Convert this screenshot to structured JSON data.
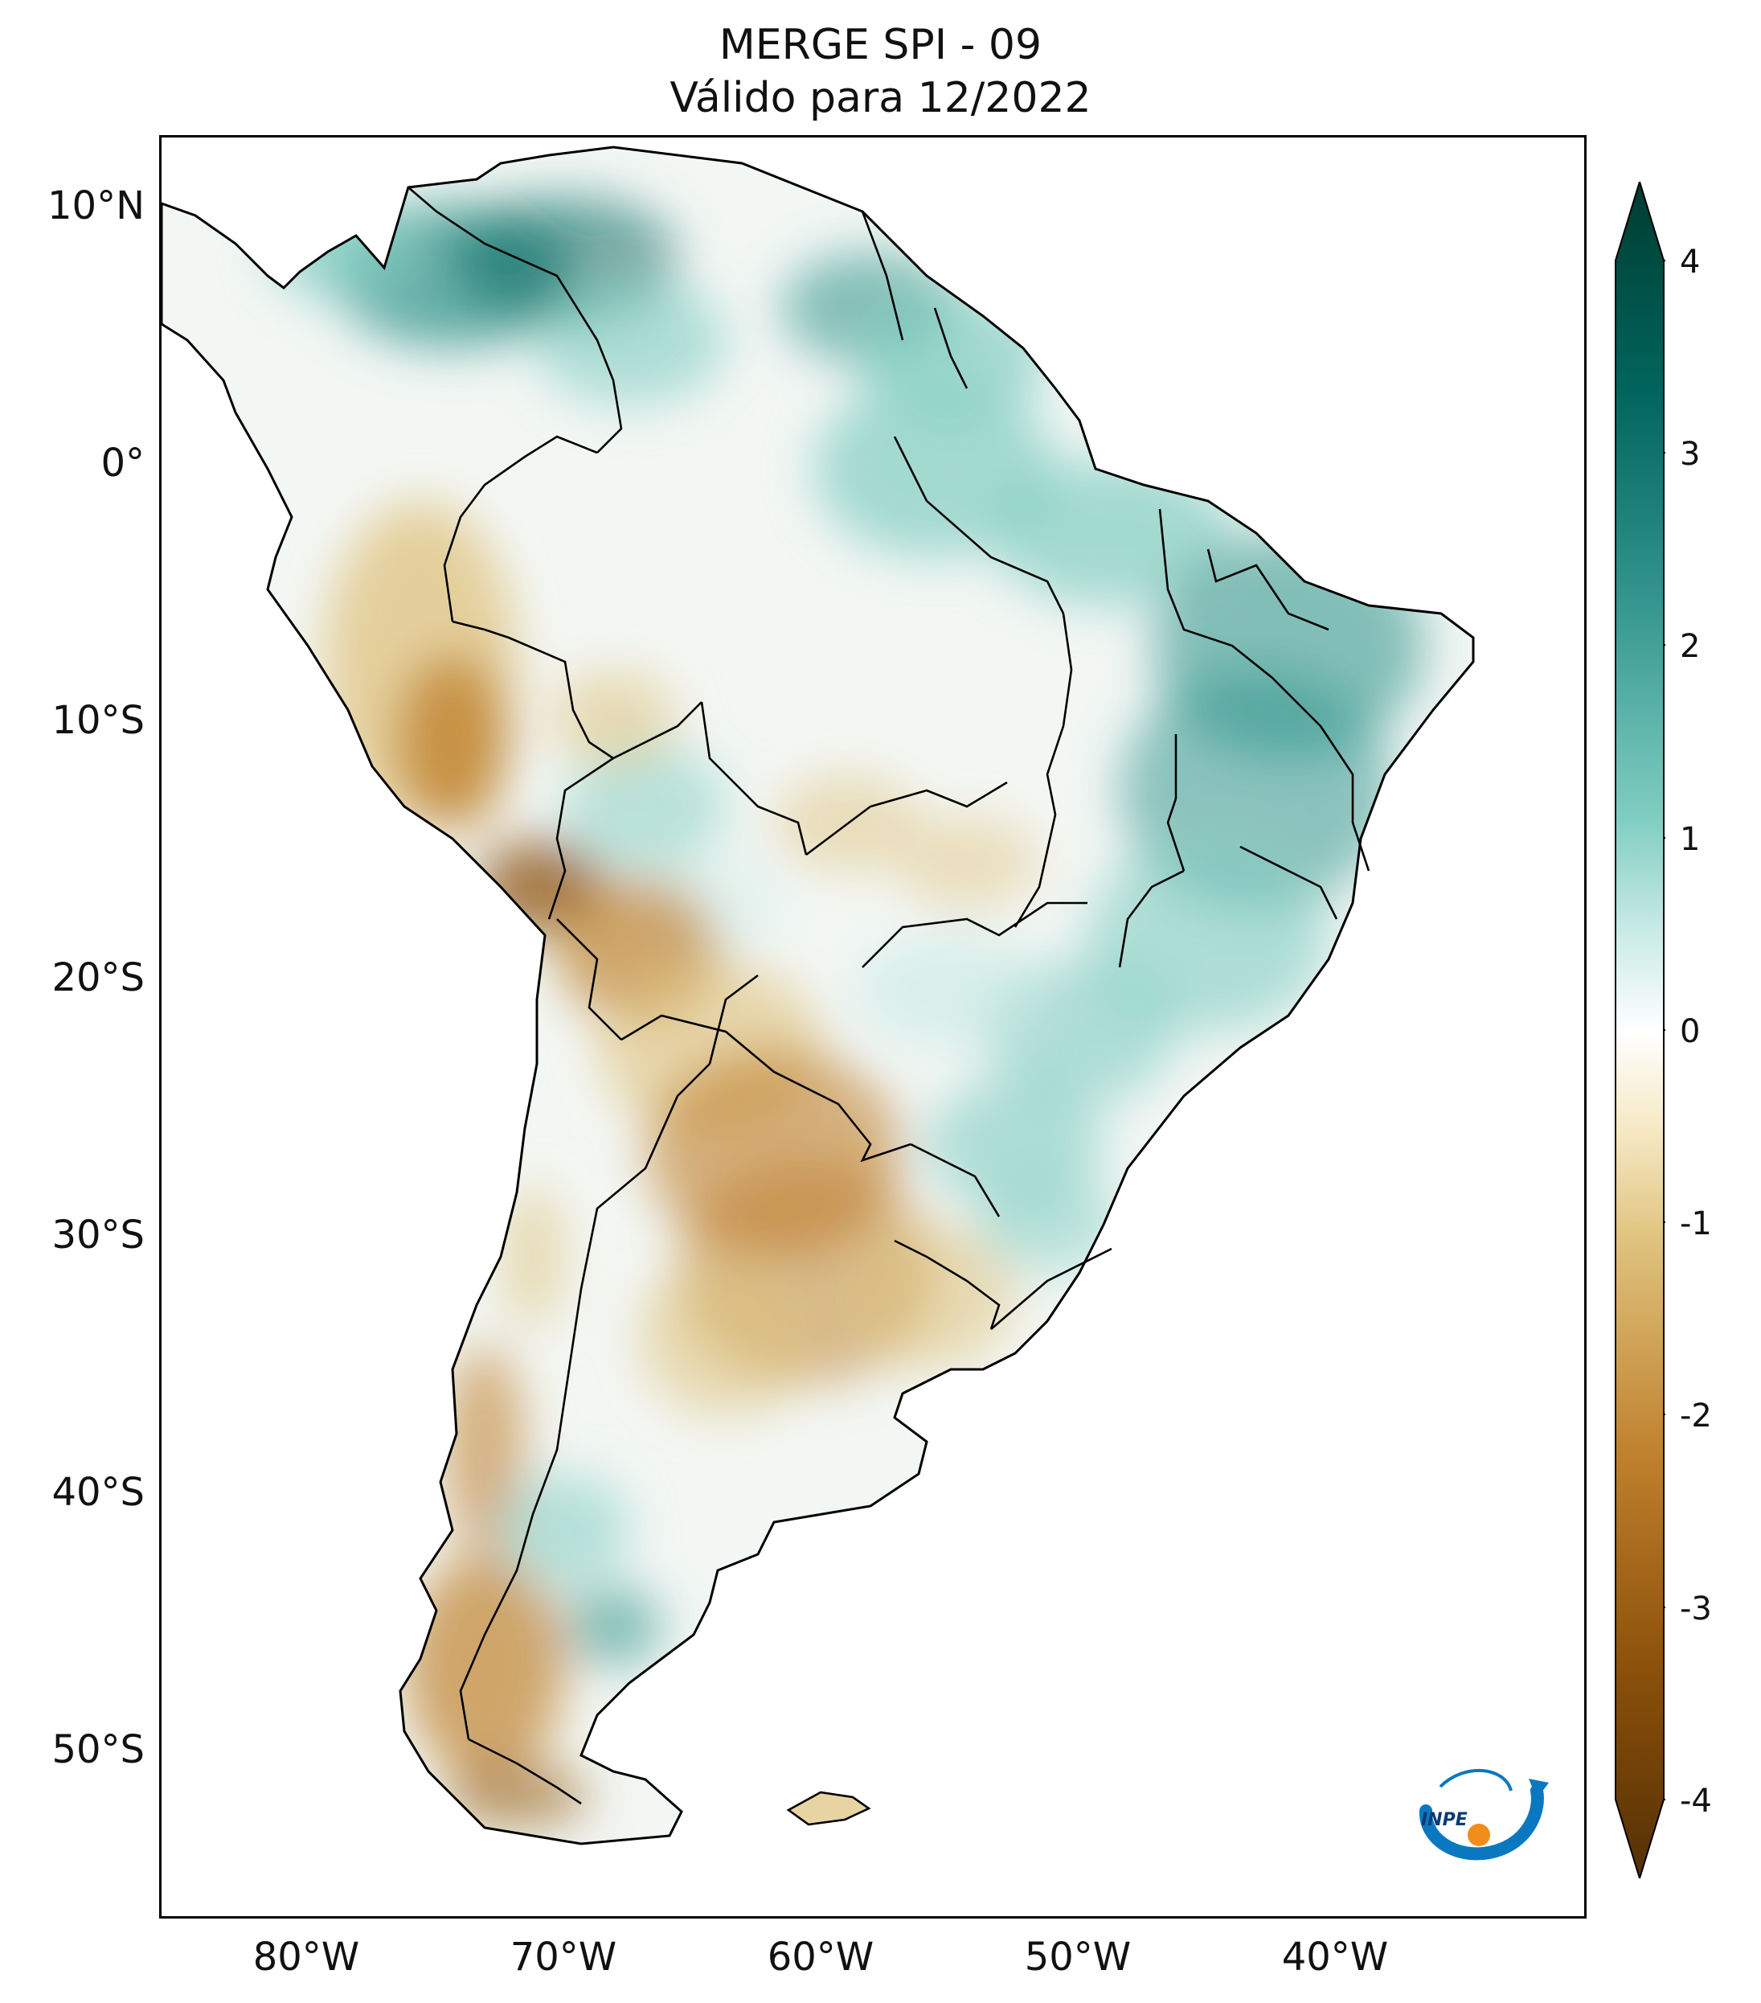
{
  "title": {
    "line1": "MERGE   SPI - 09",
    "line2": "Válido para 12/2022"
  },
  "axes": {
    "lat_labels": [
      "10°N",
      "0°",
      "10°S",
      "20°S",
      "30°S",
      "40°S",
      "50°S"
    ],
    "lon_labels": [
      "80°W",
      "70°W",
      "60°W",
      "50°W",
      "40°W"
    ]
  },
  "colorbar": {
    "ticks": [
      "4",
      "3",
      "2",
      "1",
      "0",
      "-1",
      "-2",
      "-3",
      "-4"
    ],
    "colors": {
      "p4": "#003c30",
      "p3": "#01665e",
      "p2": "#35978f",
      "p1": "#80cdc1",
      "p05": "#c7eae5",
      "zero": "#ffffff",
      "m05": "#f6e8c3",
      "m1": "#dfc27d",
      "m2": "#bf812d",
      "m3": "#8c510a",
      "m4": "#543005"
    }
  },
  "logo": {
    "text": "INPE",
    "icon": "inpe-logo-icon"
  }
}
